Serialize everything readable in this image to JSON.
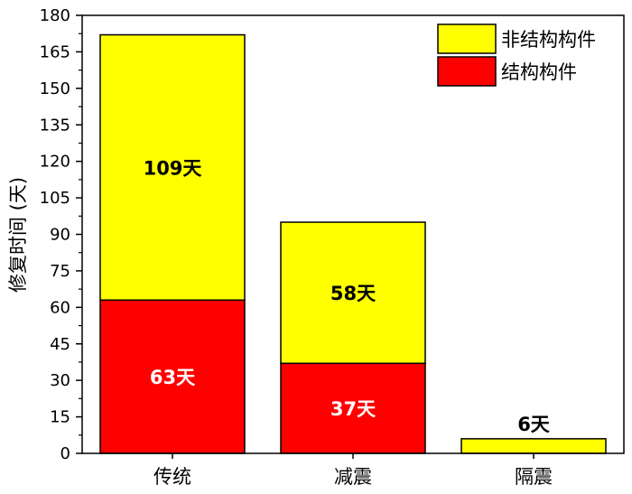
{
  "chart_data": {
    "type": "bar",
    "stacked": true,
    "categories": [
      "传统",
      "减震",
      "隔震"
    ],
    "ylabel": "修复时间 (天)",
    "ylim": [
      0,
      180
    ],
    "yticks": [
      0,
      15,
      30,
      45,
      60,
      75,
      90,
      105,
      120,
      135,
      150,
      165,
      180
    ],
    "legend_position": "top-right",
    "grid": false,
    "series": [
      {
        "name": "结构构件",
        "color": "#ff0000",
        "values": [
          63,
          37,
          0
        ],
        "labels": [
          "63天",
          "37天",
          ""
        ],
        "label_color": "#ffffff"
      },
      {
        "name": "非结构构件",
        "color": "#ffff00",
        "values": [
          109,
          58,
          6
        ],
        "labels": [
          "109天",
          "58天",
          "6天"
        ],
        "label_color": "#000000"
      }
    ],
    "legend_order": [
      1,
      0
    ]
  }
}
